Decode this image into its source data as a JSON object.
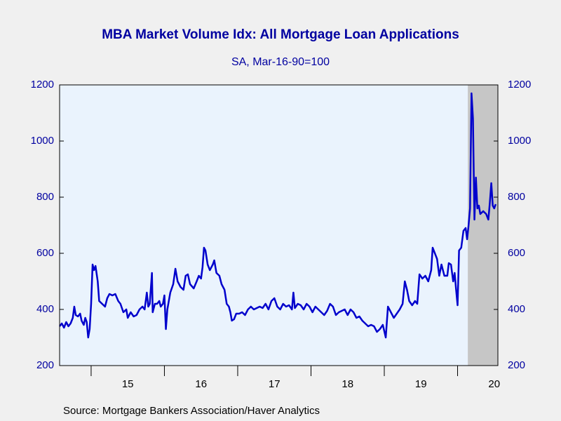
{
  "chart_data": {
    "type": "line",
    "title": "MBA Market Volume Idx: All Mortgage Loan Applications",
    "subtitle": "SA, Mar-16-90=100",
    "source": "Source:  Mortgage Bankers Association/Haver Analytics",
    "xlim": [
      2014.57,
      2020.55
    ],
    "xticks": [
      {
        "value": 2015.5,
        "label": "15"
      },
      {
        "value": 2016.5,
        "label": "16"
      },
      {
        "value": 2017.5,
        "label": "17"
      },
      {
        "value": 2018.5,
        "label": "18"
      },
      {
        "value": 2019.5,
        "label": "19"
      },
      {
        "value": 2020.5,
        "label": "20"
      }
    ],
    "xminorticks": [
      2015,
      2016,
      2017,
      2018,
      2019,
      2020
    ],
    "ylim": [
      200,
      1200
    ],
    "yticks": [
      200,
      400,
      600,
      800,
      1000,
      1200
    ],
    "y2lim": [
      200,
      1200
    ],
    "y2ticks": [
      200,
      400,
      600,
      800,
      1000,
      1200
    ],
    "shade": [
      2020.14,
      2020.55
    ],
    "x": [
      2014.57,
      2014.6,
      2014.63,
      2014.66,
      2014.69,
      2014.72,
      2014.75,
      2014.77,
      2014.79,
      2014.82,
      2014.85,
      2014.87,
      2014.9,
      2014.92,
      2014.94,
      2014.96,
      2014.98,
      2015.0,
      2015.02,
      2015.04,
      2015.06,
      2015.09,
      2015.11,
      2015.15,
      2015.19,
      2015.22,
      2015.25,
      2015.29,
      2015.33,
      2015.37,
      2015.4,
      2015.44,
      2015.48,
      2015.5,
      2015.54,
      2015.58,
      2015.62,
      2015.66,
      2015.7,
      2015.73,
      2015.76,
      2015.78,
      2015.8,
      2015.83,
      2015.84,
      2015.87,
      2015.9,
      2015.93,
      2015.95,
      2015.98,
      2016.0,
      2016.02,
      2016.04,
      2016.08,
      2016.12,
      2016.15,
      2016.18,
      2016.22,
      2016.26,
      2016.29,
      2016.32,
      2016.35,
      2016.4,
      2016.44,
      2016.47,
      2016.5,
      2016.52,
      2016.54,
      2016.56,
      2016.59,
      2016.62,
      2016.66,
      2016.68,
      2016.71,
      2016.75,
      2016.78,
      2016.82,
      2016.85,
      2016.88,
      2016.9,
      2016.92,
      2016.95,
      2016.98,
      2017.02,
      2017.06,
      2017.1,
      2017.14,
      2017.18,
      2017.22,
      2017.26,
      2017.3,
      2017.34,
      2017.38,
      2017.42,
      2017.46,
      2017.5,
      2017.54,
      2017.58,
      2017.62,
      2017.66,
      2017.7,
      2017.74,
      2017.76,
      2017.78,
      2017.82,
      2017.86,
      2017.9,
      2017.94,
      2017.98,
      2018.02,
      2018.06,
      2018.1,
      2018.14,
      2018.18,
      2018.22,
      2018.26,
      2018.3,
      2018.34,
      2018.38,
      2018.42,
      2018.46,
      2018.5,
      2018.54,
      2018.58,
      2018.62,
      2018.66,
      2018.7,
      2018.74,
      2018.78,
      2018.82,
      2018.86,
      2018.9,
      2018.94,
      2018.98,
      2019.02,
      2019.05,
      2019.09,
      2019.13,
      2019.17,
      2019.21,
      2019.25,
      2019.28,
      2019.31,
      2019.34,
      2019.38,
      2019.42,
      2019.45,
      2019.48,
      2019.52,
      2019.56,
      2019.6,
      2019.64,
      2019.66,
      2019.69,
      2019.72,
      2019.75,
      2019.78,
      2019.82,
      2019.86,
      2019.88,
      2019.91,
      2019.94,
      2019.96,
      2019.98,
      2020.0,
      2020.02,
      2020.05,
      2020.08,
      2020.11,
      2020.13,
      2020.15,
      2020.17,
      2020.19,
      2020.21,
      2020.23,
      2020.25,
      2020.27,
      2020.29,
      2020.31,
      2020.35,
      2020.39,
      2020.42,
      2020.44,
      2020.46,
      2020.48,
      2020.5,
      2020.52
    ],
    "series": [
      {
        "color": "#0000cc",
        "values": [
          340,
          350,
          335,
          355,
          340,
          350,
          370,
          410,
          380,
          375,
          385,
          360,
          345,
          370,
          355,
          300,
          330,
          420,
          560,
          540,
          555,
          500,
          430,
          420,
          410,
          440,
          455,
          450,
          455,
          430,
          420,
          390,
          400,
          370,
          390,
          375,
          380,
          400,
          410,
          400,
          460,
          410,
          420,
          530,
          390,
          420,
          420,
          430,
          410,
          420,
          450,
          330,
          400,
          460,
          490,
          545,
          500,
          480,
          470,
          520,
          525,
          490,
          475,
          500,
          520,
          510,
          550,
          620,
          610,
          560,
          540,
          560,
          575,
          530,
          520,
          490,
          470,
          420,
          410,
          390,
          360,
          365,
          385,
          385,
          390,
          380,
          400,
          410,
          400,
          405,
          410,
          405,
          420,
          400,
          430,
          440,
          410,
          400,
          420,
          410,
          415,
          400,
          460,
          405,
          420,
          415,
          400,
          420,
          410,
          390,
          410,
          400,
          390,
          380,
          395,
          420,
          410,
          380,
          390,
          395,
          400,
          380,
          400,
          390,
          370,
          375,
          360,
          350,
          340,
          345,
          340,
          320,
          330,
          345,
          300,
          410,
          390,
          370,
          385,
          400,
          420,
          500,
          470,
          430,
          415,
          430,
          420,
          525,
          510,
          520,
          500,
          540,
          620,
          600,
          580,
          520,
          560,
          520,
          520,
          565,
          560,
          500,
          530,
          470,
          415,
          610,
          620,
          680,
          690,
          650,
          700,
          760,
          1170,
          1080,
          720,
          870,
          760,
          770,
          740,
          750,
          740,
          720,
          780,
          850,
          770,
          760,
          775
        ]
      }
    ]
  }
}
